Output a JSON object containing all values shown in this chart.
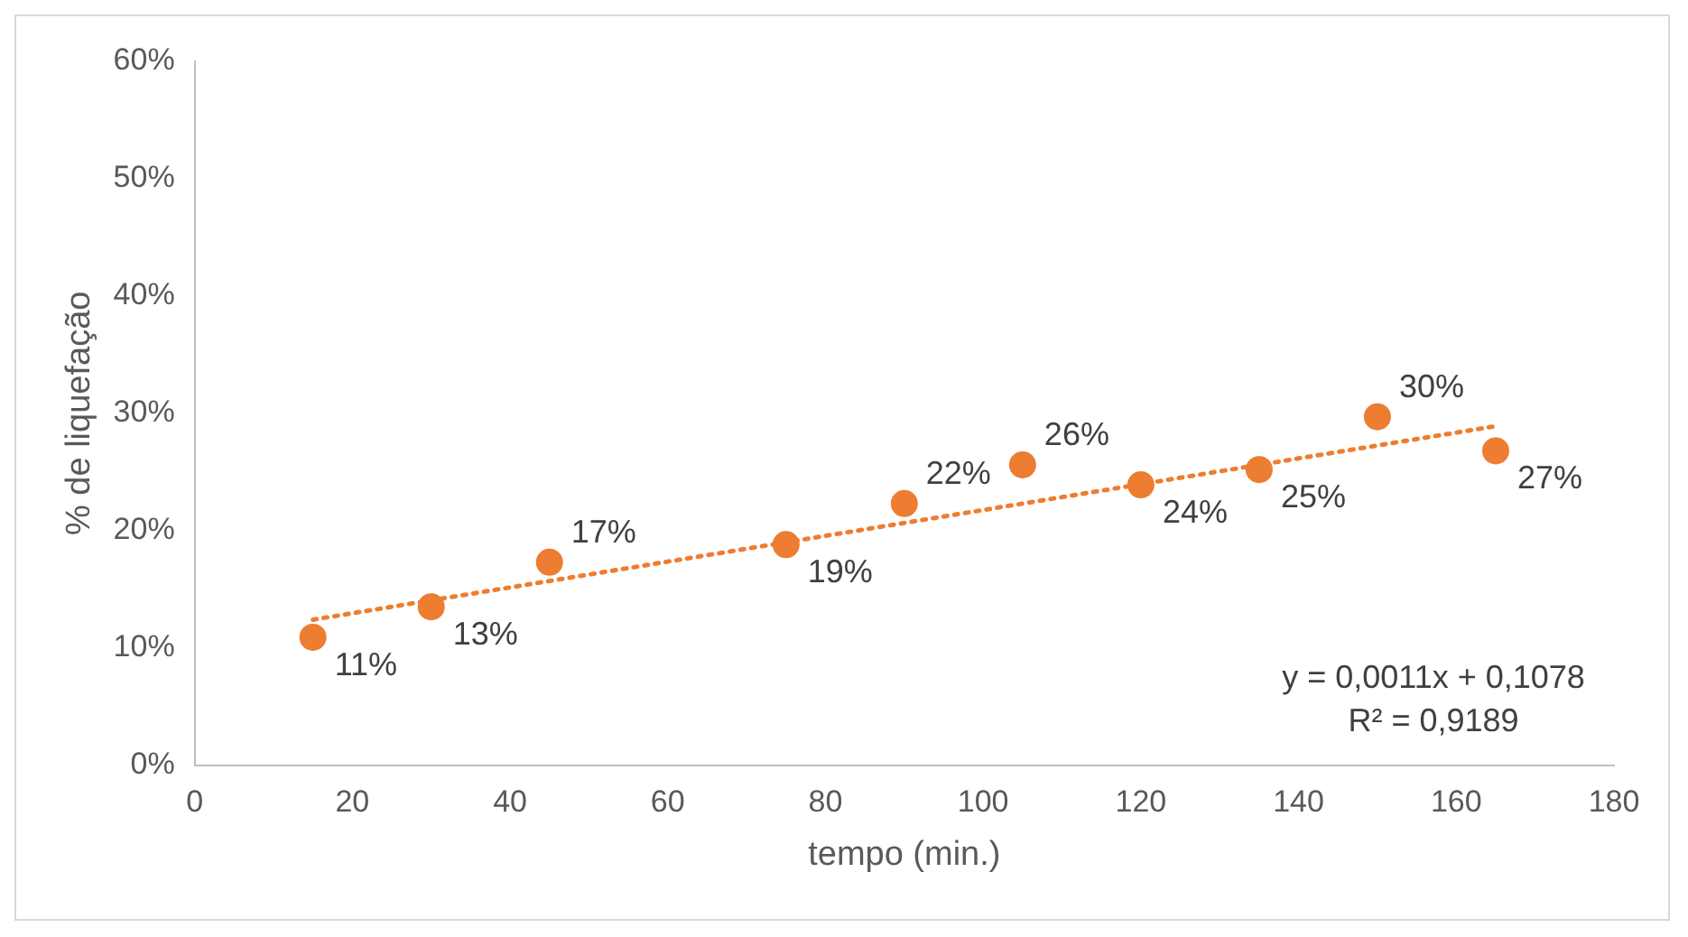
{
  "chart_data": {
    "type": "scatter",
    "xlabel": "tempo (min.)",
    "ylabel": "% de liquefação",
    "x": [
      15,
      30,
      45,
      75,
      90,
      105,
      120,
      135,
      150,
      165
    ],
    "series": [
      {
        "color": "#ed7d31",
        "marker": "circle",
        "values": [
          10.9,
          13.5,
          17.3,
          18.8,
          22.3,
          25.6,
          23.9,
          25.2,
          29.7,
          26.8
        ],
        "value_labels": [
          "11%",
          "13%",
          "17%",
          "19%",
          "22%",
          "26%",
          "24%",
          "25%",
          "30%",
          "27%"
        ]
      },
      {
        "type": "line",
        "color": "#ed7d31",
        "line_style": "dotted",
        "marker": "none",
        "x": [
          15,
          165
        ],
        "values": [
          12.4,
          28.9
        ]
      }
    ],
    "xlim": [
      0,
      180
    ],
    "xticks": [
      0,
      20,
      40,
      60,
      80,
      100,
      120,
      140,
      160,
      180
    ],
    "ylim": [
      0,
      60
    ],
    "yticks": [
      {
        "value": 0,
        "label": "0%"
      },
      {
        "value": 10,
        "label": "10%"
      },
      {
        "value": 20,
        "label": "20%"
      },
      {
        "value": 30,
        "label": "30%"
      },
      {
        "value": 40,
        "label": "40%"
      },
      {
        "value": 50,
        "label": "50%"
      },
      {
        "value": 60,
        "label": "60%"
      }
    ],
    "grid": false,
    "legend": false,
    "annotations": [
      "y = 0,0011x + 0,1078",
      "R² = 0,9189"
    ]
  }
}
